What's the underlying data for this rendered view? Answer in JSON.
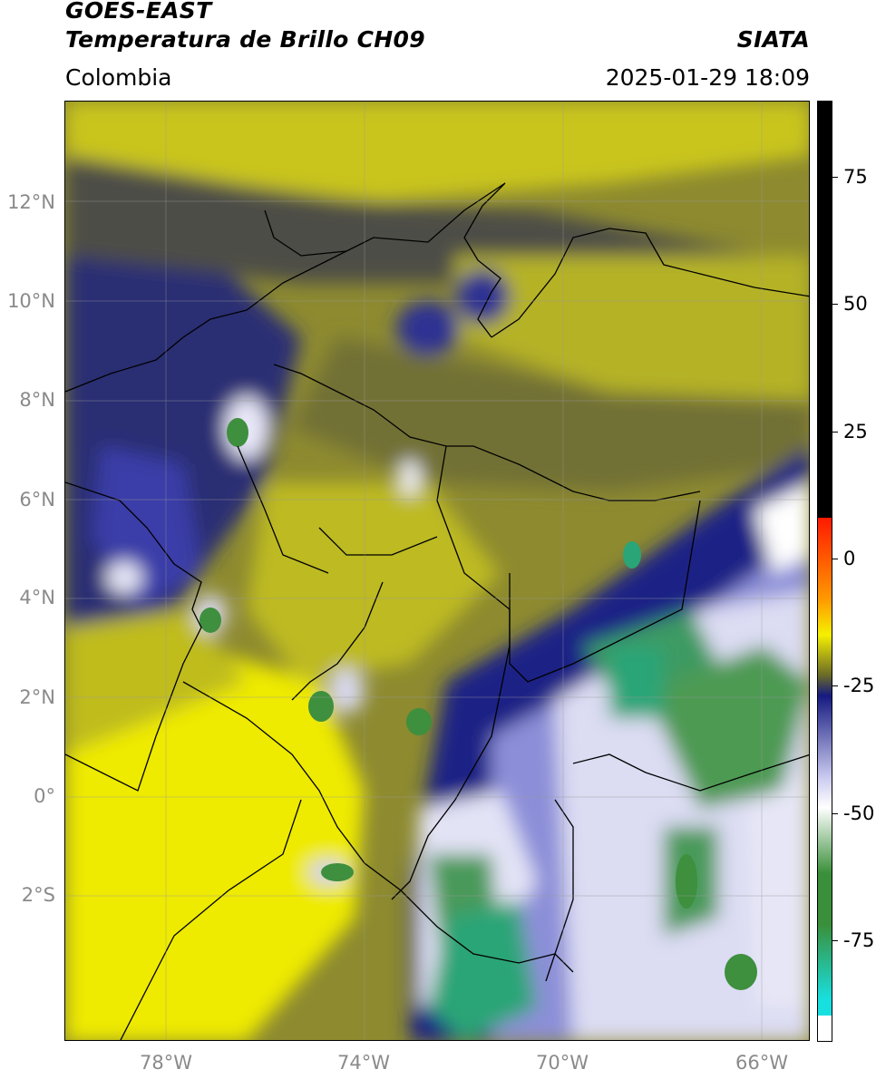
{
  "header": {
    "line1": "GOES-EAST",
    "line2": "Temperatura de Brillo CH09",
    "region": "Colombia",
    "org": "SIATA",
    "timestamp": "2025-01-29 18:09"
  },
  "map": {
    "lat_labels": [
      "12°N",
      "10°N",
      "8°N",
      "6°N",
      "4°N",
      "2°N",
      "0°",
      "2°S"
    ],
    "lon_labels": [
      "78°W",
      "74°W",
      "70°W",
      "66°W"
    ],
    "lon_range": [
      -80,
      -65
    ],
    "lat_range": [
      -5.2,
      14
    ]
  },
  "colorbar": {
    "tick_labels": [
      "75",
      "50",
      "25",
      "0",
      "-25",
      "-50",
      "-75"
    ],
    "tick_values": [
      75,
      50,
      25,
      0,
      -25,
      -50,
      -75
    ],
    "range": [
      -95,
      90
    ],
    "colors": {
      "black_band": "#000000",
      "red": "#ff1a00",
      "orange": "#ff9900",
      "yellow": "#f5f000",
      "olive": "#6a6a28",
      "navy": "#151a80",
      "lavender": "#c9c9ef",
      "white": "#ffffff",
      "green": "#3a8f3a",
      "cyan": "#18e0e0"
    }
  }
}
